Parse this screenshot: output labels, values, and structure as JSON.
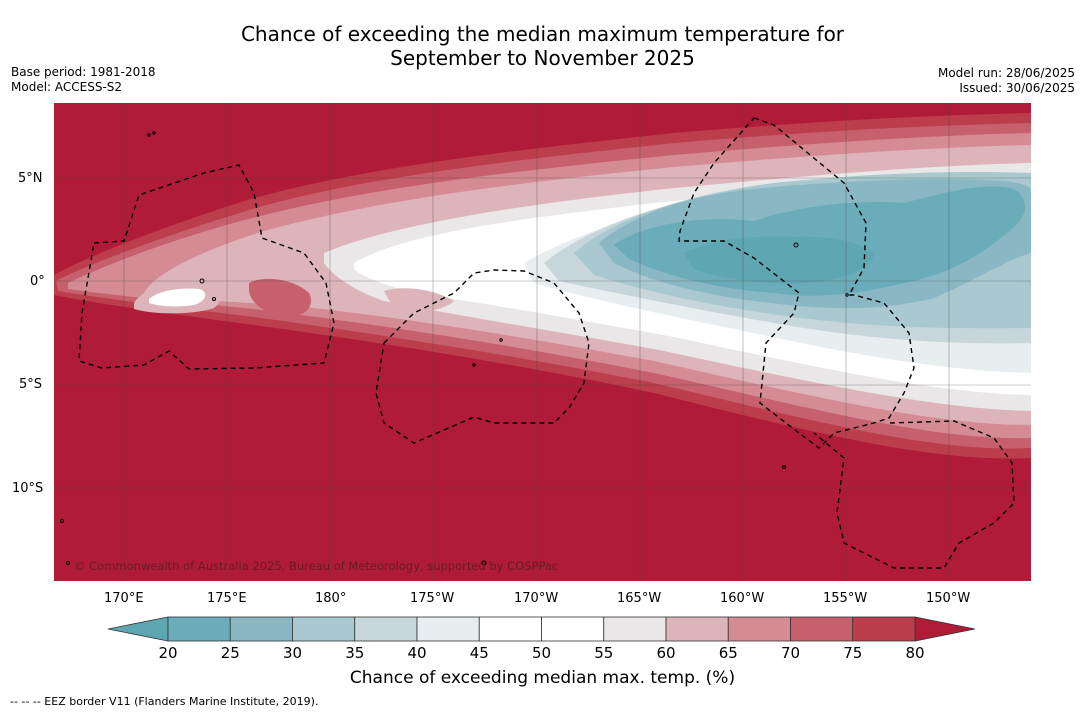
{
  "header": {
    "title_line1": "Chance of exceeding the median maximum temperature for",
    "title_line2": "September to November 2025",
    "base_period": "Base period: 1981-2018",
    "model": "Model: ACCESS-S2",
    "model_run": "Model run: 28/06/2025",
    "issued": "Issued: 30/06/2025"
  },
  "map": {
    "lat_labels": [
      "5°N",
      "0°",
      "5°S",
      "10°S"
    ],
    "lon_labels": [
      "170°E",
      "175°E",
      "180°",
      "175°W",
      "170°W",
      "165°W",
      "160°W",
      "155°W",
      "150°W"
    ],
    "copyright": "© Commonwealth of Australia 2025, Bureau of Meteorology, supported by COSPPac"
  },
  "colorbar": {
    "ticks": [
      "20",
      "25",
      "30",
      "35",
      "40",
      "45",
      "50",
      "55",
      "60",
      "65",
      "70",
      "75",
      "80"
    ],
    "colors": [
      "#5fa6b3",
      "#6aacb9",
      "#89b8c4",
      "#a9c8cf",
      "#c6d6db",
      "#e8eef0",
      "#ffffff",
      "#ffffff",
      "#e9e7e8",
      "#ddb4ba",
      "#d58b94",
      "#c6606c",
      "#bc3d4c",
      "#b01c37"
    ],
    "label": "Chance of exceeding median max. temp. (%)"
  },
  "footnote": "--  --  -- EEZ border V11 (Flanders Marine Institute, 2019)."
}
